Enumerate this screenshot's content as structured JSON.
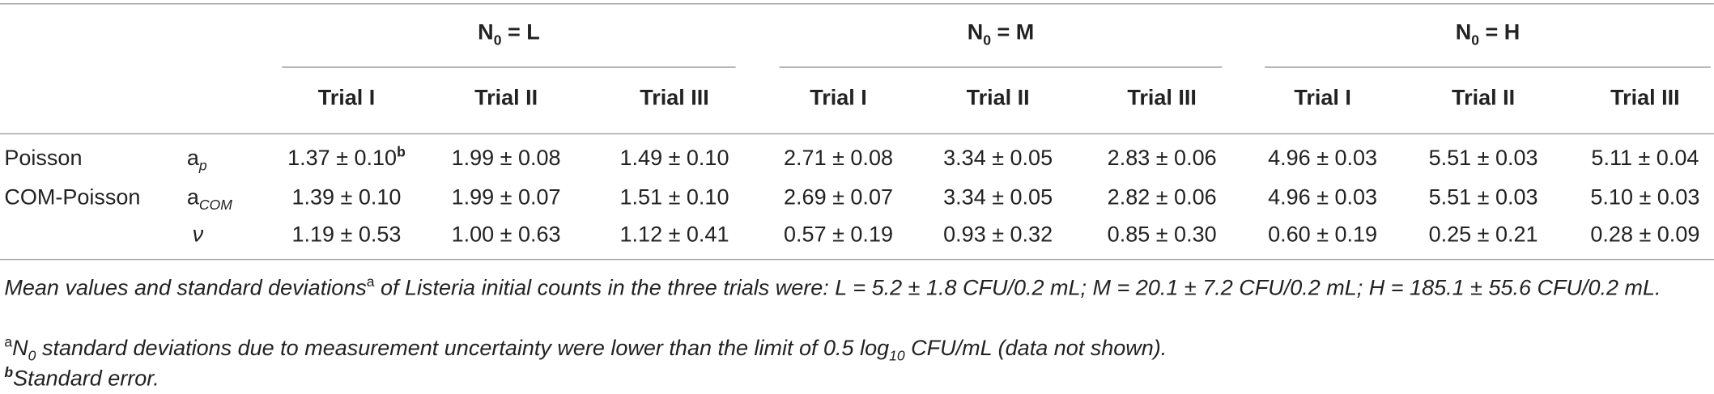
{
  "table": {
    "groups": [
      [
        "N",
        {
          "sub": "0"
        },
        " = L"
      ],
      [
        "N",
        {
          "sub": "0"
        },
        " = M"
      ],
      [
        "N",
        {
          "sub": "0"
        },
        " = H"
      ]
    ],
    "trials": [
      "Trial I",
      "Trial II",
      "Trial III",
      "Trial I",
      "Trial II",
      "Trial III",
      "Trial I",
      "Trial II",
      "Trial III"
    ],
    "rows": [
      {
        "model": "Poisson",
        "param": [
          "a",
          {
            "sub": "p"
          }
        ],
        "cells": [
          [
            "1.37 ± 0.10",
            {
              "sup": "b"
            }
          ],
          "1.99 ± 0.08",
          "1.49 ± 0.10",
          "2.71 ± 0.08",
          "3.34 ± 0.05",
          "2.83 ± 0.06",
          "4.96 ± 0.03",
          "5.51 ± 0.03",
          "5.11 ± 0.04"
        ]
      },
      {
        "model": "COM-Poisson",
        "param": [
          "a",
          {
            "sub": "COM"
          }
        ],
        "cells": [
          "1.39 ± 0.10",
          "1.99 ± 0.07",
          "1.51 ± 0.10",
          "2.69 ± 0.07",
          "3.34 ± 0.05",
          "2.82 ± 0.06",
          "4.96 ± 0.03",
          "5.51 ± 0.03",
          "5.10 ± 0.03"
        ]
      },
      {
        "param": [
          "ν"
        ],
        "cells": [
          "1.19 ± 0.53",
          "1.00 ± 0.63",
          "1.12 ± 0.41",
          "0.57 ± 0.19",
          "0.93 ± 0.32",
          "0.85 ± 0.30",
          "0.60 ± 0.19",
          "0.25 ± 0.21",
          "0.28 ± 0.09"
        ]
      }
    ],
    "footnotes": [
      [
        "Mean values and standard deviations",
        {
          "sup": "a"
        },
        " of Listeria initial counts in the three trials were: L = 5.2 ± 1.8 CFU/0.2 mL; M = 20.1 ± 7.2 CFU/0.2 mL; H = 185.1 ± 55.6 CFU/0.2 mL."
      ],
      [
        {
          "sup": "a"
        },
        "N",
        {
          "sub": "0"
        },
        " standard deviations due to measurement uncertainty were lower than the limit of 0.5 log",
        {
          "sub": "10"
        },
        " CFU/mL (data not shown)."
      ],
      [
        {
          "sup": "b"
        },
        "Standard error."
      ]
    ]
  }
}
